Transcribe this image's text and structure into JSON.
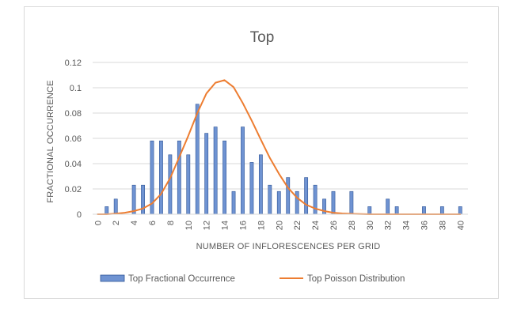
{
  "colors": {
    "bar_fill": "#6f93d2",
    "bar_stroke": "#2f5597",
    "line": "#ed7d31",
    "grid": "#d9d9d9",
    "text": "#595959"
  },
  "chart_data": {
    "type": "bar",
    "title": "Top",
    "xlabel": "NUMBER OF INFLORESCENCES PER GRID",
    "ylabel": "FRACTIONAL OCCURRENCE",
    "x": [
      0,
      1,
      2,
      3,
      4,
      5,
      6,
      7,
      8,
      9,
      10,
      11,
      12,
      13,
      14,
      15,
      16,
      17,
      18,
      19,
      20,
      21,
      22,
      23,
      24,
      25,
      26,
      27,
      28,
      29,
      30,
      31,
      32,
      33,
      34,
      35,
      36,
      37,
      38,
      39,
      40
    ],
    "x_tick_labels": [
      "0",
      "2",
      "4",
      "6",
      "8",
      "10",
      "12",
      "14",
      "16",
      "18",
      "20",
      "22",
      "24",
      "26",
      "28",
      "30",
      "32",
      "34",
      "36",
      "38",
      "40"
    ],
    "y_ticks": [
      0,
      0.02,
      0.04,
      0.06,
      0.08,
      0.1,
      0.12
    ],
    "y_tick_labels": [
      "0",
      "0.02",
      "0.04",
      "0.06",
      "0.08",
      "0.1",
      "0.12"
    ],
    "ylim": [
      0,
      0.12
    ],
    "xlim": [
      0,
      40
    ],
    "grid": true,
    "legend_position": "bottom",
    "series": [
      {
        "name": "Top Fractional Occurrence",
        "type": "bar",
        "values": [
          0,
          0.006,
          0.012,
          0,
          0.023,
          0.023,
          0.058,
          0.058,
          0.047,
          0.058,
          0.047,
          0.087,
          0.064,
          0.069,
          0.058,
          0.018,
          0.069,
          0.041,
          0.047,
          0.023,
          0.018,
          0.029,
          0.018,
          0.029,
          0.023,
          0.012,
          0.018,
          0,
          0.018,
          0,
          0.006,
          0,
          0.012,
          0.006,
          0,
          0,
          0.006,
          0,
          0.006,
          0,
          0.006
        ]
      },
      {
        "name": "Top Poisson Distribution",
        "type": "line",
        "values": [
          0,
          0,
          0.0005,
          0.0012,
          0.0025,
          0.0045,
          0.0085,
          0.016,
          0.0285,
          0.045,
          0.062,
          0.08,
          0.0955,
          0.104,
          0.106,
          0.1005,
          0.088,
          0.074,
          0.059,
          0.0445,
          0.032,
          0.021,
          0.013,
          0.0075,
          0.0045,
          0.0025,
          0.0012,
          0.0006,
          0.0003,
          0.0001,
          0,
          0,
          0,
          0,
          0,
          0,
          0,
          0,
          0,
          0,
          0
        ]
      }
    ]
  }
}
